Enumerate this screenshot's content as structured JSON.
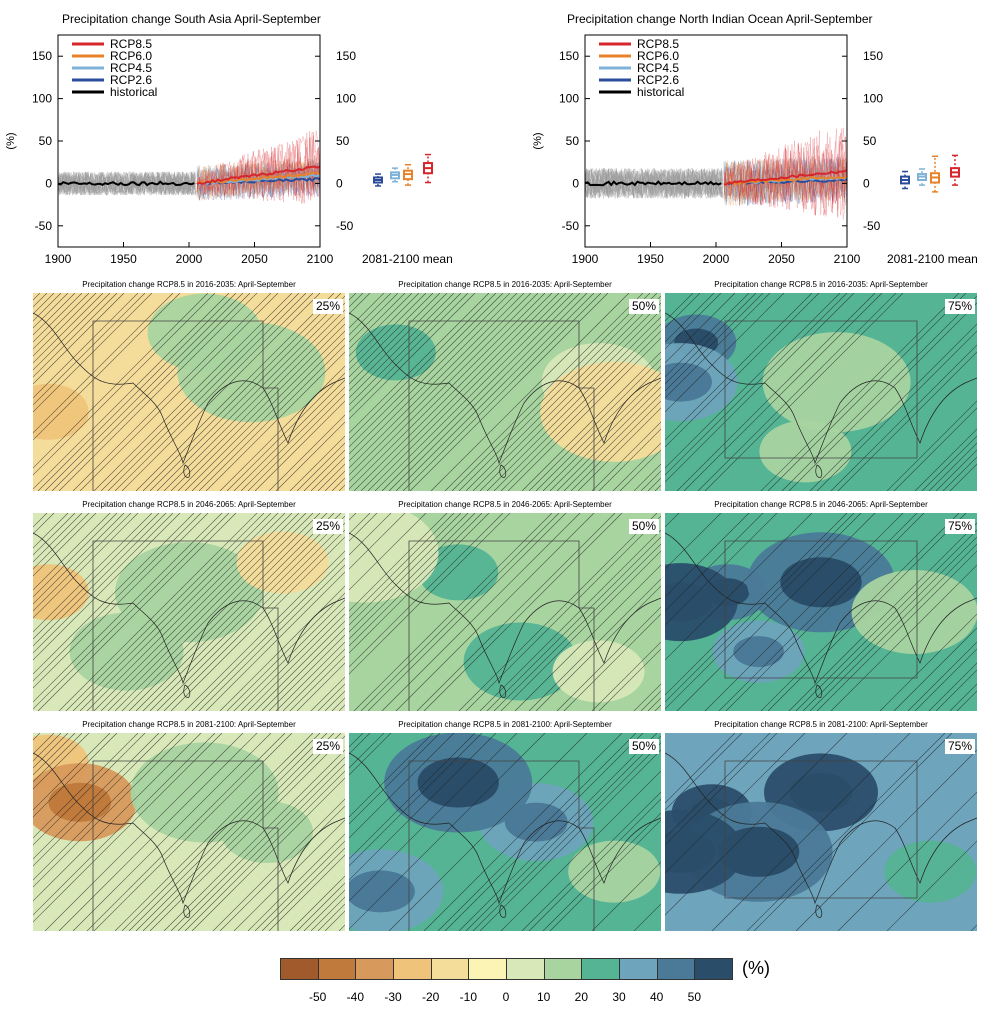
{
  "colors": {
    "rcp85": "#d7262b",
    "rcp60": "#e8822a",
    "rcp45": "#7fb2d8",
    "rcp26": "#2b4c9a",
    "historical": "#000000",
    "hist_spread": "#9a9a9a"
  },
  "legend": [
    "RCP8.5",
    "RCP6.0",
    "RCP4.5",
    "RCP2.6",
    "historical"
  ],
  "timeseries": [
    {
      "title": "Precipitation change South Asia April-September",
      "ylabel": "(%)",
      "mean_label": "2081-2100 mean",
      "xticks": [
        "1900",
        "1950",
        "2000",
        "2050",
        "2100"
      ],
      "yticks": [
        "150",
        "100",
        "50",
        "0",
        "-50"
      ],
      "xlim": [
        1900,
        2100
      ],
      "ylim": [
        -75,
        175
      ],
      "endpoints_2100": {
        "RCP8.5": 20,
        "RCP6.0": 12,
        "RCP4.5": 10,
        "RCP2.6": 5
      },
      "boxes_2081_2100": [
        {
          "name": "RCP2.6",
          "min": -3,
          "q1": 1,
          "median": 4,
          "q3": 7,
          "max": 11
        },
        {
          "name": "RCP4.5",
          "min": 2,
          "q1": 6,
          "median": 10,
          "q3": 13,
          "max": 18
        },
        {
          "name": "RCP6.0",
          "min": -2,
          "q1": 5,
          "median": 11,
          "q3": 15,
          "max": 22
        },
        {
          "name": "RCP8.5",
          "min": 1,
          "q1": 12,
          "median": 18,
          "q3": 24,
          "max": 34
        }
      ]
    },
    {
      "title": "Precipitation change North Indian Ocean April-September",
      "ylabel": "(%)",
      "mean_label": "2081-2100 mean",
      "xticks": [
        "1900",
        "1950",
        "2000",
        "2050",
        "2100"
      ],
      "yticks": [
        "150",
        "100",
        "50",
        "0",
        "-50"
      ],
      "xlim": [
        1900,
        2100
      ],
      "ylim": [
        -75,
        175
      ],
      "endpoints_2100": {
        "RCP8.5": 15,
        "RCP6.0": 8,
        "RCP4.5": 7,
        "RCP2.6": 4
      },
      "boxes_2081_2100": [
        {
          "name": "RCP2.6",
          "min": -6,
          "q1": 0,
          "median": 4,
          "q3": 8,
          "max": 14
        },
        {
          "name": "RCP4.5",
          "min": -2,
          "q1": 4,
          "median": 8,
          "q3": 11,
          "max": 17
        },
        {
          "name": "RCP6.0",
          "min": -10,
          "q1": 1,
          "median": 7,
          "q3": 12,
          "max": 32
        },
        {
          "name": "RCP8.5",
          "min": -2,
          "q1": 8,
          "median": 13,
          "q3": 18,
          "max": 33
        }
      ]
    }
  ],
  "maps": [
    {
      "title": "Precipitation change RCP8.5 in 2016-2035: April-September",
      "pct": "25%",
      "base_level": -1,
      "blobs": [
        [
          -2,
          0.05,
          0.6
        ],
        [
          1,
          0.55,
          0.2
        ],
        [
          1,
          0.7,
          0.4
        ]
      ],
      "hatch": 0.8
    },
    {
      "title": "Precipitation change RCP8.5 in 2016-2035: April-September",
      "pct": "50%",
      "base_level": 1,
      "blobs": [
        [
          2,
          0.15,
          0.3
        ],
        [
          0,
          0.8,
          0.45
        ],
        [
          -1,
          0.85,
          0.6
        ]
      ],
      "hatch": 0.9
    },
    {
      "title": "Precipitation change RCP8.5 in 2016-2035: April-September",
      "pct": "75%",
      "base_level": 2,
      "blobs": [
        [
          4,
          0.1,
          0.25
        ],
        [
          3,
          0.05,
          0.45
        ],
        [
          1,
          0.55,
          0.45
        ],
        [
          1,
          0.45,
          0.8
        ]
      ],
      "hatch": 0.5
    },
    {
      "title": "Precipitation change RCP8.5 in 2046-2065: April-September",
      "pct": "25%",
      "base_level": 0,
      "blobs": [
        [
          -2,
          0.05,
          0.4
        ],
        [
          1,
          0.3,
          0.7
        ],
        [
          1,
          0.5,
          0.4
        ],
        [
          -1,
          0.8,
          0.25
        ]
      ],
      "hatch": 0.8
    },
    {
      "title": "Precipitation change RCP8.5 in 2046-2065: April-September",
      "pct": "50%",
      "base_level": 1,
      "blobs": [
        [
          2,
          0.35,
          0.3
        ],
        [
          2,
          0.55,
          0.75
        ],
        [
          0,
          0.05,
          0.2
        ],
        [
          0,
          0.8,
          0.8
        ]
      ],
      "hatch": 0.7
    },
    {
      "title": "Precipitation change RCP8.5 in 2046-2065: April-September",
      "pct": "75%",
      "base_level": 2,
      "blobs": [
        [
          4,
          0.2,
          0.4
        ],
        [
          5,
          0.05,
          0.45
        ],
        [
          4,
          0.5,
          0.35
        ],
        [
          3,
          0.3,
          0.7
        ],
        [
          1,
          0.8,
          0.5
        ]
      ],
      "hatch": 0.3
    },
    {
      "title": "Precipitation change RCP8.5 in 2081-2100: April-September",
      "pct": "25%",
      "base_level": 0,
      "blobs": [
        [
          -2,
          0.05,
          0.15
        ],
        [
          -3,
          0.15,
          0.35
        ],
        [
          1,
          0.55,
          0.3
        ],
        [
          1,
          0.75,
          0.5
        ]
      ],
      "hatch": 0.7
    },
    {
      "title": "Precipitation change RCP8.5 in 2081-2100: April-September",
      "pct": "50%",
      "base_level": 2,
      "blobs": [
        [
          3,
          0.3,
          0.3
        ],
        [
          3,
          0.6,
          0.45
        ],
        [
          4,
          0.35,
          0.25
        ],
        [
          1,
          0.85,
          0.7
        ],
        [
          3,
          0.1,
          0.8
        ]
      ],
      "hatch": 0.4
    },
    {
      "title": "Precipitation change RCP8.5 in 2081-2100: April-September",
      "pct": "75%",
      "base_level": 3,
      "blobs": [
        [
          5,
          0.15,
          0.4
        ],
        [
          5,
          0.5,
          0.3
        ],
        [
          4,
          0.3,
          0.6
        ],
        [
          2,
          0.85,
          0.7
        ],
        [
          5,
          0.05,
          0.6
        ]
      ],
      "hatch": 0.2
    }
  ],
  "colorbar": {
    "unit": "(%)",
    "colors": [
      "#a05a2c",
      "#c07a3c",
      "#d89a5c",
      "#efc47a",
      "#f4dc9a",
      "#fbf4b4",
      "#d8e8b8",
      "#a8d4a0",
      "#54b494",
      "#6ea4bc",
      "#4a7a98",
      "#2a4e6a"
    ],
    "ticks": [
      "-50",
      "-40",
      "-30",
      "-20",
      "-10",
      "0",
      "10",
      "20",
      "30",
      "40",
      "50"
    ]
  }
}
